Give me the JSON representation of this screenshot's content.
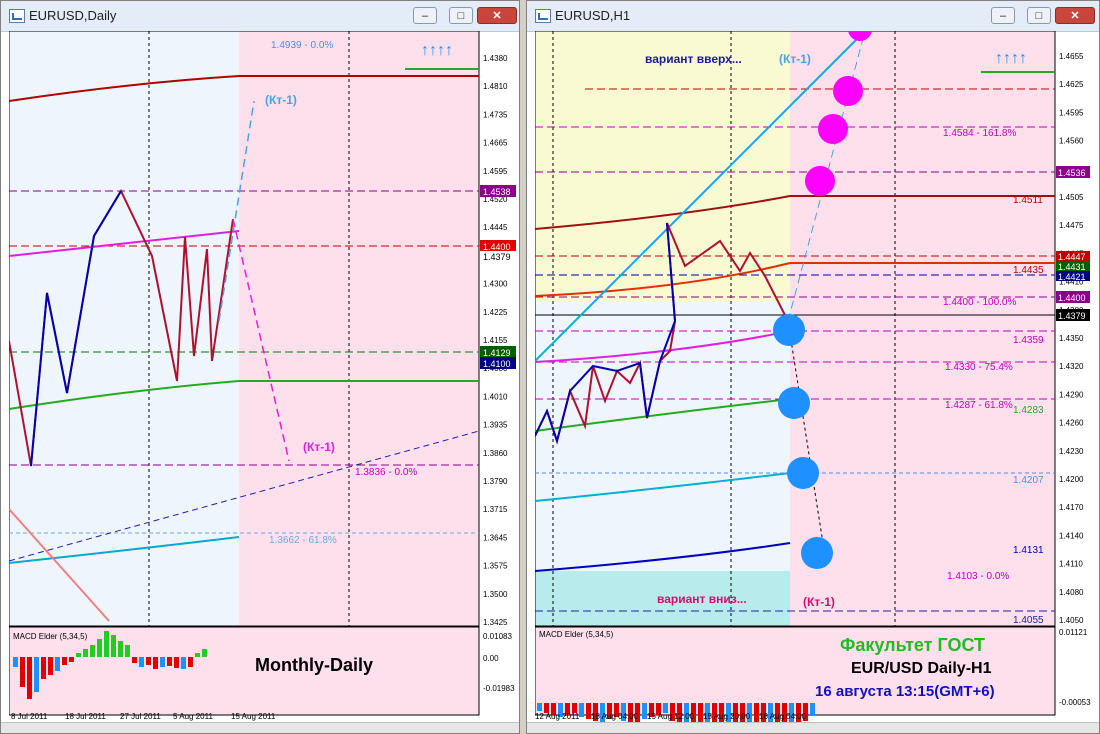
{
  "left_window": {
    "title": "EURUSD,Daily",
    "buttons": {
      "minimize": "–",
      "maximize": "□",
      "close": "✕"
    },
    "price_labels": [
      "1.4380",
      "1.4810",
      "1.4735",
      "1.4665",
      "1.4595",
      "1.4520",
      "1.4445",
      "1.4375",
      "1.4300",
      "1.4225",
      "1.4155",
      "1.4080",
      "1.4010",
      "1.3935",
      "1.3860",
      "1.3790",
      "1.3715",
      "1.3645",
      "1.3575",
      "1.3500",
      "1.3425"
    ],
    "tag_labels": {
      "top": "1.4538",
      "red": "1.4400",
      "grey": "1.4379",
      "green": "1.4129",
      "blue": "1.4100"
    },
    "fib_top": "1.4939 - 0.0%",
    "fib_mid": "1.3836 - 0.0%",
    "fib_low": "1.3662 - 61.8%",
    "kt_up": "(Кт-1)",
    "kt_down": "(Кт-1)",
    "arrows_icon": "↑↑↑↑",
    "macd_label": "MACD Elder (5,34,5)",
    "macd_scale": [
      "0.01083",
      "0.00",
      "-0.01983"
    ],
    "big_label": "Monthly-Daily",
    "date_labels": [
      "8 Jul 2011",
      "18 Jul 2011",
      "27 Jul 2011",
      "5 Aug 2011",
      "15 Aug 2011"
    ]
  },
  "right_window": {
    "title": "EURUSD,H1",
    "buttons": {
      "minimize": "–",
      "maximize": "□",
      "close": "✕"
    },
    "price_labels": [
      "1.4655",
      "1.4625",
      "1.4595",
      "1.4560",
      "1.4535",
      "1.4505",
      "1.4475",
      "1.4445",
      "1.4410",
      "1.4380",
      "1.4350",
      "1.4320",
      "1.4290",
      "1.4260",
      "1.4230",
      "1.4200",
      "1.4170",
      "1.4140",
      "1.4110",
      "1.4080",
      "1.4050"
    ],
    "tag_labels": {
      "a": "1.4536",
      "b": "1.4447",
      "c": "1.4431",
      "d": "1.4421",
      "e": "1.4400",
      "f": "1.4379"
    },
    "level_labels": {
      "l1": "1.4584 - 161.8%",
      "l2": "1.4511",
      "l3": "1.4435",
      "l4": "1.4400 - 100.0%",
      "l5": "1.4359",
      "l6": "1.4330 - 75.4%",
      "l7": "1.4287 - 61.8%",
      "l8": "1.4283",
      "l9": "1.4207",
      "l10": "1.4131",
      "l11": "1.4103 - 0.0%",
      "l12": "1.4055"
    },
    "variant_up": "вариант вверх...",
    "variant_up_kt": "(Кт-1)",
    "variant_down": "вариант вниз...",
    "variant_down_kt": "(Кт-1)",
    "arrows_icon": "↑↑↑↑",
    "macd_label": "MACD Elder (5,34,5)",
    "macd_scale": [
      "0.01121",
      "-0.00053"
    ],
    "caption_line1": "Факультет ГОСТ",
    "caption_line2": "EUR/USD Daily-H1",
    "caption_line3": "16  августа 13:15(GMT+6)",
    "date_labels": [
      "12 Aug 2011",
      "15 Aug 04:00",
      "15 Aug 12:00",
      "15 Aug 20:00",
      "16 Aug 04:00"
    ]
  },
  "colors": {
    "pink_zone": "#fde0ec",
    "light_zone": "#eef5fc",
    "yellow_zone": "#fafad2",
    "cyan_zone": "#b8ecec",
    "magenta": "#ff00ff",
    "blue": "#1e90ff"
  }
}
